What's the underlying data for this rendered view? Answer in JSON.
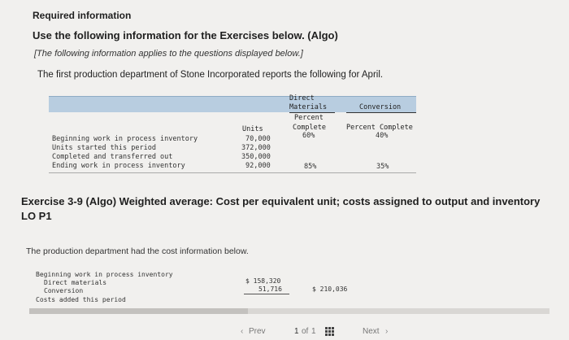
{
  "header": {
    "required": "Required information",
    "use_following": "Use the following information for the Exercises below. (Algo)",
    "applies_note": "[The following information applies to the questions displayed below.]",
    "intro": "The first production department of Stone Incorporated reports the following for April."
  },
  "table": {
    "col_units": "Units",
    "col_dm_lines": [
      "Direct",
      "Materials",
      "Percent",
      "Complete"
    ],
    "col_conv": "Conversion",
    "col_conv_sub": "Percent Complete",
    "rows": [
      {
        "label": "Beginning work in process inventory",
        "units": "70,000",
        "dm": "60%",
        "conv": "40%"
      },
      {
        "label": "Units started this period",
        "units": "372,000",
        "dm": "",
        "conv": ""
      },
      {
        "label": "Completed and transferred out",
        "units": "350,000",
        "dm": "",
        "conv": ""
      },
      {
        "label": "Ending work in process inventory",
        "units": "92,000",
        "dm": "85%",
        "conv": "35%"
      }
    ]
  },
  "exercise": {
    "title": "Exercise 3-9 (Algo) Weighted average: Cost per equivalent unit; costs assigned to output and inventory",
    "lo": "LO P1",
    "cost_intro": "The production department had the cost information below."
  },
  "costs": {
    "beginning_label": "Beginning work in process inventory",
    "dm_label": "Direct materials",
    "dm_value": "$ 158,320",
    "conv_label": "Conversion",
    "conv_value": "51,716",
    "total_value": "$ 210,036",
    "added_label": "Costs added this period"
  },
  "progress": {
    "fraction": 0.42
  },
  "pager": {
    "prev": "Prev",
    "current": "1",
    "of": "of",
    "total": "1",
    "next": "Next"
  }
}
